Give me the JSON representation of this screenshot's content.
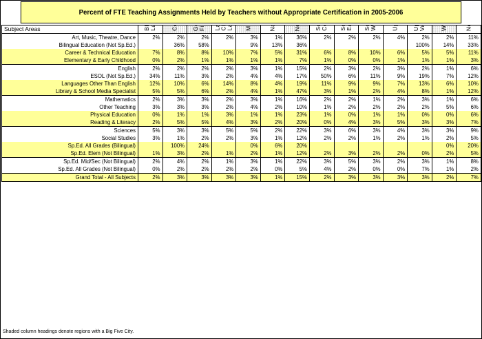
{
  "title": "Percent of FTE Teaching Assignments Held by Teachers without Appropriate Certification in 2005-2006",
  "subject_header": "Subject Areas",
  "footnote": "Shaded column headings denote regions with a Big Five City.",
  "chart_data": {
    "type": "table",
    "columns": [
      {
        "label": "Black River-St\nLawrence",
        "shaded": false
      },
      {
        "label": "Central",
        "shaded": true
      },
      {
        "label": "Genesee-\nFinger Lakes",
        "shaded": true
      },
      {
        "label": "Lake\nChamplain-\nLake George",
        "shaded": false
      },
      {
        "label": "Mid-Hudson",
        "shaded": true
      },
      {
        "label": "Nassau-Suffolk",
        "shaded": false
      },
      {
        "label": "New York City",
        "shaded": true
      },
      {
        "label": "Southern Tier -\nCentral",
        "shaded": false
      },
      {
        "label": "Southern Tier -\nEast",
        "shaded": false
      },
      {
        "label": "Southern Tier -\nWest",
        "shaded": false
      },
      {
        "label": "Upper Hudson",
        "shaded": false
      },
      {
        "label": "Upper Mohawk\nValley",
        "shaded": false
      },
      {
        "label": "Western",
        "shaded": true
      },
      {
        "label": "New York State",
        "shaded": false
      }
    ],
    "rows": [
      {
        "subject": "Art, Music, Theatre, Dance",
        "values": [
          "2%",
          "2%",
          "2%",
          "2%",
          "3%",
          "1%",
          "36%",
          "2%",
          "2%",
          "2%",
          "4%",
          "2%",
          "2%",
          "11%"
        ]
      },
      {
        "subject": "Bilingual Education (Not Sp.Ed.)",
        "values": [
          "",
          "36%",
          "58%",
          "",
          "9%",
          "13%",
          "36%",
          "",
          "",
          "",
          "",
          "100%",
          "14%",
          "33%"
        ]
      },
      {
        "subject": "Career & Technical Education",
        "values": [
          "7%",
          "8%",
          "8%",
          "10%",
          "7%",
          "5%",
          "31%",
          "6%",
          "8%",
          "10%",
          "6%",
          "5%",
          "5%",
          "11%"
        ]
      },
      {
        "subject": "Elementary & Early Childhood",
        "values": [
          "0%",
          "2%",
          "1%",
          "1%",
          "1%",
          "1%",
          "7%",
          "1%",
          "0%",
          "0%",
          "1%",
          "1%",
          "1%",
          "3%"
        ]
      },
      {
        "subject": "English",
        "values": [
          "2%",
          "2%",
          "2%",
          "2%",
          "3%",
          "1%",
          "15%",
          "2%",
          "3%",
          "2%",
          "3%",
          "2%",
          "1%",
          "6%"
        ]
      },
      {
        "subject": "ESOL (Not Sp.Ed.)",
        "values": [
          "34%",
          "11%",
          "3%",
          "2%",
          "4%",
          "4%",
          "17%",
          "50%",
          "6%",
          "11%",
          "9%",
          "19%",
          "7%",
          "12%"
        ]
      },
      {
        "subject": "Languages Other Than English",
        "values": [
          "12%",
          "10%",
          "6%",
          "14%",
          "8%",
          "4%",
          "19%",
          "11%",
          "9%",
          "9%",
          "7%",
          "13%",
          "6%",
          "10%"
        ]
      },
      {
        "subject": "Library & School Media Specialist",
        "values": [
          "5%",
          "5%",
          "6%",
          "2%",
          "4%",
          "1%",
          "47%",
          "3%",
          "1%",
          "2%",
          "4%",
          "8%",
          "1%",
          "12%"
        ]
      },
      {
        "subject": "Mathematics",
        "values": [
          "2%",
          "3%",
          "3%",
          "2%",
          "3%",
          "1%",
          "16%",
          "2%",
          "2%",
          "1%",
          "2%",
          "3%",
          "1%",
          "6%"
        ]
      },
      {
        "subject": "Other Teaching",
        "values": [
          "3%",
          "3%",
          "3%",
          "2%",
          "4%",
          "2%",
          "10%",
          "1%",
          "2%",
          "2%",
          "2%",
          "2%",
          "5%",
          "6%"
        ]
      },
      {
        "subject": "Physical Education",
        "values": [
          "0%",
          "1%",
          "1%",
          "3%",
          "1%",
          "1%",
          "23%",
          "1%",
          "0%",
          "1%",
          "1%",
          "0%",
          "0%",
          "6%"
        ]
      },
      {
        "subject": "Reading & Literacy",
        "values": [
          "2%",
          "5%",
          "5%",
          "4%",
          "3%",
          "2%",
          "20%",
          "0%",
          "4%",
          "3%",
          "5%",
          "3%",
          "3%",
          "7%"
        ]
      },
      {
        "subject": "Sciences",
        "values": [
          "5%",
          "3%",
          "3%",
          "5%",
          "5%",
          "2%",
          "22%",
          "3%",
          "6%",
          "3%",
          "4%",
          "3%",
          "3%",
          "9%"
        ]
      },
      {
        "subject": "Social Studies",
        "values": [
          "3%",
          "1%",
          "2%",
          "2%",
          "3%",
          "1%",
          "12%",
          "2%",
          "2%",
          "1%",
          "2%",
          "1%",
          "2%",
          "5%"
        ]
      },
      {
        "subject": "Sp.Ed. All Grades (Bilingual)",
        "values": [
          "",
          "100%",
          "24%",
          "",
          "0%",
          "6%",
          "20%",
          "",
          "",
          "",
          "",
          "",
          "0%",
          "20%"
        ]
      },
      {
        "subject": "Sp.Ed. Elem (Not Bilingual)",
        "values": [
          "1%",
          "3%",
          "2%",
          "1%",
          "2%",
          "1%",
          "12%",
          "2%",
          "3%",
          "2%",
          "2%",
          "0%",
          "2%",
          "5%"
        ]
      },
      {
        "subject": "Sp.Ed. Mid/Sec (Not Bilingual)",
        "values": [
          "2%",
          "4%",
          "2%",
          "1%",
          "3%",
          "1%",
          "22%",
          "3%",
          "5%",
          "3%",
          "2%",
          "3%",
          "1%",
          "8%"
        ]
      },
      {
        "subject": "Sp.Ed. All Grades (Not Bilingual)",
        "values": [
          "0%",
          "2%",
          "2%",
          "2%",
          "2%",
          "0%",
          "5%",
          "4%",
          "2%",
          "0%",
          "0%",
          "7%",
          "1%",
          "2%"
        ]
      }
    ],
    "total": {
      "subject": "Grand Total - All Subjects",
      "values": [
        "2%",
        "3%",
        "3%",
        "3%",
        "3%",
        "1%",
        "15%",
        "2%",
        "3%",
        "3%",
        "3%",
        "3%",
        "2%",
        "7%"
      ]
    }
  }
}
